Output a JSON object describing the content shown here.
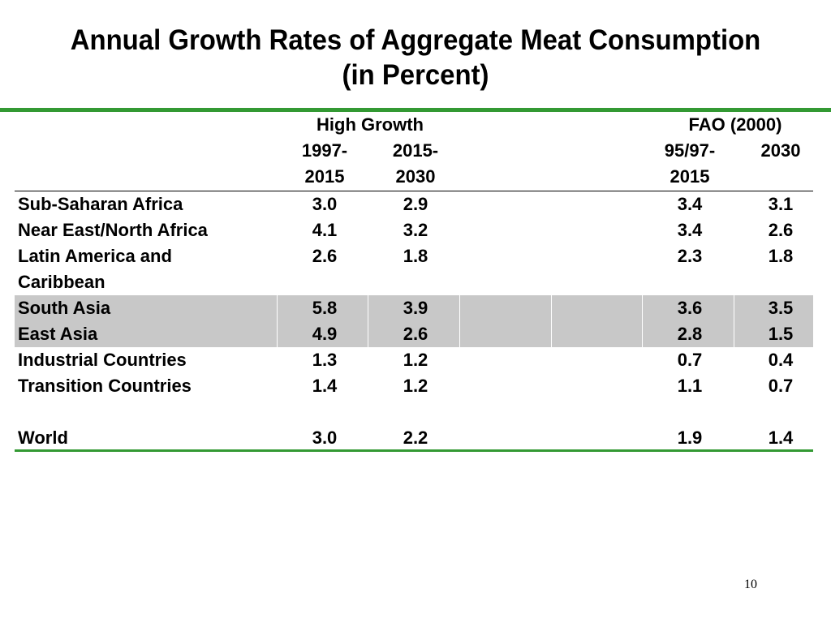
{
  "title": {
    "line1": "Annual Growth Rates of Aggregate Meat Consumption",
    "line2": "(in Percent)"
  },
  "table": {
    "group_headers": [
      "High Growth",
      "FAO (2000)"
    ],
    "column_headers": [
      [
        "1997-",
        "2015"
      ],
      [
        "2015-",
        "2030"
      ],
      [
        "95/97-",
        "2015"
      ],
      [
        "2030",
        ""
      ]
    ],
    "rows": [
      {
        "region": [
          "Sub-Saharan Africa"
        ],
        "values": [
          "3.0",
          "2.9",
          "3.4",
          "3.1"
        ],
        "shaded": false
      },
      {
        "region": [
          "Near East/North Africa"
        ],
        "values": [
          "4.1",
          "3.2",
          "3.4",
          "2.6"
        ],
        "shaded": false
      },
      {
        "region": [
          "Latin America and",
          "Caribbean"
        ],
        "values": [
          "2.6",
          "1.8",
          "2.3",
          "1.8"
        ],
        "shaded": false
      },
      {
        "region": [
          "South Asia"
        ],
        "values": [
          "5.8",
          "3.9",
          "3.6",
          "3.5"
        ],
        "shaded": true
      },
      {
        "region": [
          "East Asia"
        ],
        "values": [
          "4.9",
          "2.6",
          "2.8",
          "1.5"
        ],
        "shaded": true
      },
      {
        "region": [
          "Industrial Countries"
        ],
        "values": [
          "1.3",
          "1.2",
          "0.7",
          "0.4"
        ],
        "shaded": false
      },
      {
        "region": [
          "Transition Countries"
        ],
        "values": [
          "1.4",
          "1.2",
          "1.1",
          "0.7"
        ],
        "shaded": false
      },
      {
        "region": [
          ""
        ],
        "values": [
          "",
          "",
          "",
          ""
        ],
        "shaded": false
      },
      {
        "region": [
          "World"
        ],
        "values": [
          "3.0",
          "2.2",
          "1.9",
          "1.4"
        ],
        "shaded": false
      }
    ]
  },
  "page_number": "10",
  "colors": {
    "accent_green": "#339933",
    "shade_gray": "#c8c8c8"
  }
}
